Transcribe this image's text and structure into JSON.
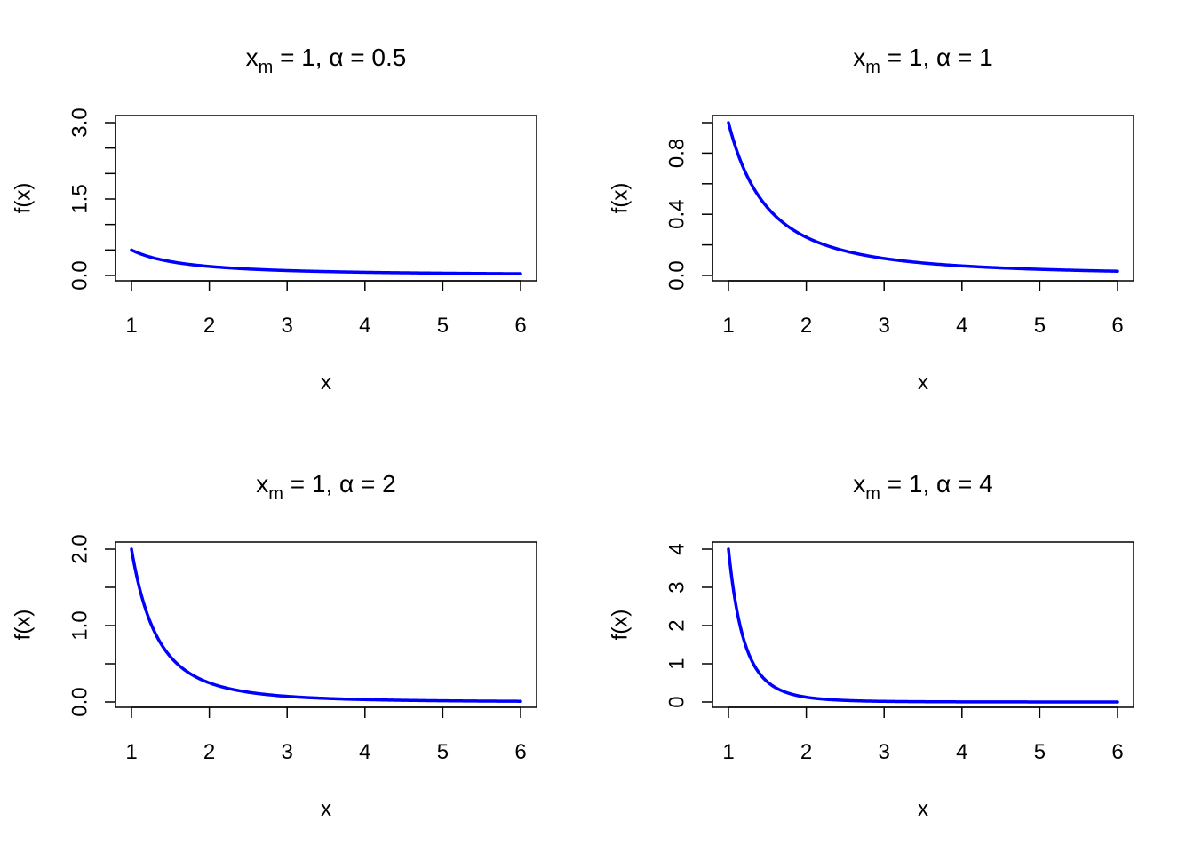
{
  "chart_data": [
    {
      "type": "line",
      "title": {
        "pre": "x",
        "sub": "m",
        "post": " = 1,  α = 0.5"
      },
      "xlabel": "x",
      "ylabel": "f(x)",
      "xlim": [
        1,
        6
      ],
      "ylim": [
        0,
        3.0
      ],
      "x_ticks": [
        1,
        2,
        3,
        4,
        5,
        6
      ],
      "y_ticks": [
        0,
        0.5,
        1.0,
        1.5,
        2.0,
        2.5,
        3.0
      ],
      "y_tick_labels": [
        {
          "value": 0,
          "label": "0.0"
        },
        {
          "value": 1.5,
          "label": "1.5"
        },
        {
          "value": 3.0,
          "label": "3.0"
        }
      ],
      "series": [
        {
          "function": "pareto_pdf",
          "xm": 1,
          "alpha": 0.5,
          "x_range": [
            1,
            6
          ]
        }
      ]
    },
    {
      "type": "line",
      "title": {
        "pre": "x",
        "sub": "m",
        "post": " = 1,  α = 1"
      },
      "xlabel": "x",
      "ylabel": "f(x)",
      "xlim": [
        1,
        6
      ],
      "ylim": [
        0,
        1.0
      ],
      "x_ticks": [
        1,
        2,
        3,
        4,
        5,
        6
      ],
      "y_ticks": [
        0,
        0.2,
        0.4,
        0.6,
        0.8,
        1.0
      ],
      "y_tick_labels": [
        {
          "value": 0,
          "label": "0.0"
        },
        {
          "value": 0.4,
          "label": "0.4"
        },
        {
          "value": 0.8,
          "label": "0.8"
        }
      ],
      "series": [
        {
          "function": "pareto_pdf",
          "xm": 1,
          "alpha": 1,
          "x_range": [
            1,
            6
          ]
        }
      ]
    },
    {
      "type": "line",
      "title": {
        "pre": "x",
        "sub": "m",
        "post": " = 1,  α = 2"
      },
      "xlabel": "x",
      "ylabel": "f(x)",
      "xlim": [
        1,
        6
      ],
      "ylim": [
        0,
        2.0
      ],
      "x_ticks": [
        1,
        2,
        3,
        4,
        5,
        6
      ],
      "y_ticks": [
        0,
        0.5,
        1.0,
        1.5,
        2.0
      ],
      "y_tick_labels": [
        {
          "value": 0,
          "label": "0.0"
        },
        {
          "value": 1.0,
          "label": "1.0"
        },
        {
          "value": 2.0,
          "label": "2.0"
        }
      ],
      "series": [
        {
          "function": "pareto_pdf",
          "xm": 1,
          "alpha": 2,
          "x_range": [
            1,
            6
          ]
        }
      ]
    },
    {
      "type": "line",
      "title": {
        "pre": "x",
        "sub": "m",
        "post": " = 1,  α = 4"
      },
      "xlabel": "x",
      "ylabel": "f(x)",
      "xlim": [
        1,
        6
      ],
      "ylim": [
        0,
        4
      ],
      "x_ticks": [
        1,
        2,
        3,
        4,
        5,
        6
      ],
      "y_ticks": [
        0,
        1,
        2,
        3,
        4
      ],
      "y_tick_labels": [
        {
          "value": 0,
          "label": "0"
        },
        {
          "value": 1,
          "label": "1"
        },
        {
          "value": 2,
          "label": "2"
        },
        {
          "value": 3,
          "label": "3"
        },
        {
          "value": 4,
          "label": "4"
        }
      ],
      "series": [
        {
          "function": "pareto_pdf",
          "xm": 1,
          "alpha": 4,
          "x_range": [
            1,
            6
          ]
        }
      ]
    }
  ],
  "colors": {
    "curve": "#0000ff",
    "axis": "#000000",
    "background": "#ffffff"
  }
}
